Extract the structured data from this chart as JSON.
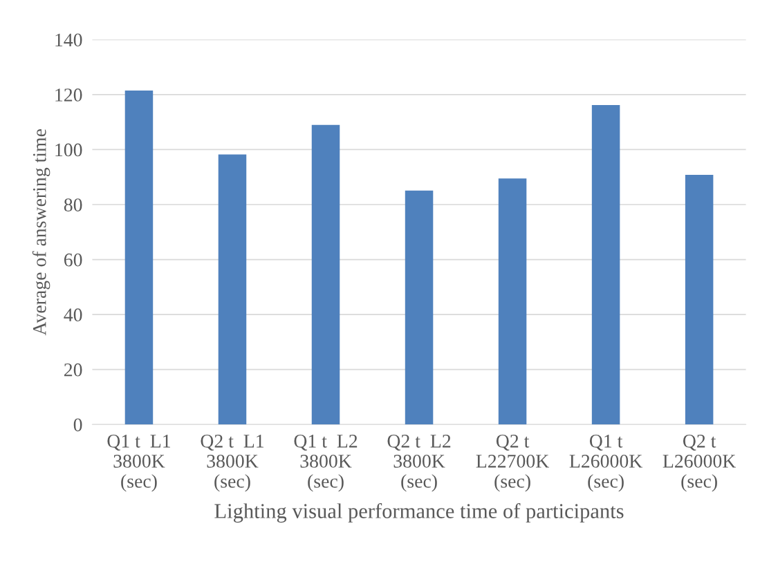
{
  "chart_data": {
    "type": "bar",
    "xlabel": "Lighting visual performance time of participants",
    "ylabel": "Average of answering time",
    "categories": [
      "Q1 t  L1\n3800K\n(sec)",
      "Q2 t  L1\n3800K\n(sec)",
      "Q1 t  L2\n3800K\n(sec)",
      "Q2 t  L2\n3800K\n(sec)",
      "Q2 t\nL22700K\n(sec)",
      "Q1 t\nL26000K\n(sec)",
      "Q2 t\nL26000K\n(sec)"
    ],
    "values": [
      121.5,
      98.2,
      109,
      85.1,
      89.5,
      116.2,
      90.8
    ],
    "color": "#4f81bd",
    "ylim": [
      0,
      140
    ],
    "yticks": [
      0,
      20,
      40,
      60,
      80,
      100,
      120,
      140
    ],
    "grid": "y"
  }
}
